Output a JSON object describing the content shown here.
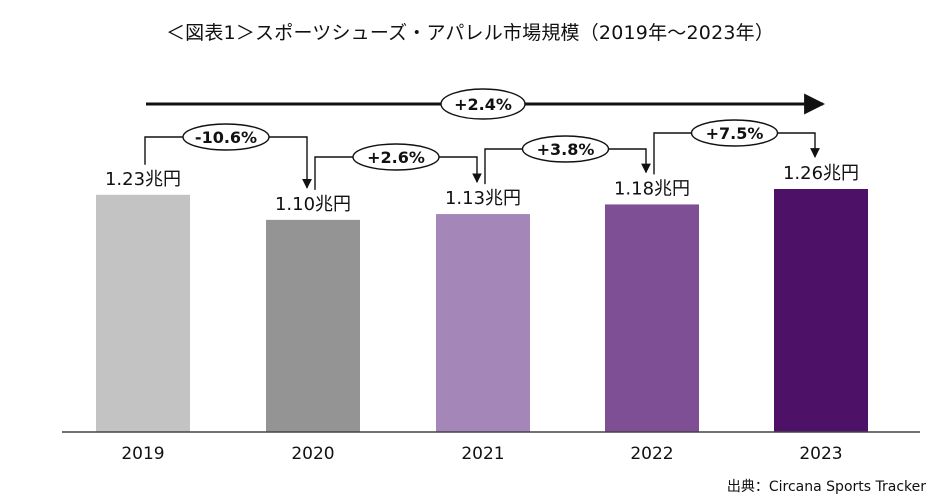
{
  "title": "＜図表1＞スポーツシューズ・アパレル市場規模（2019年～2023年）",
  "source": "出典：Circana Sports Tracker",
  "chart_data": {
    "type": "bar",
    "title": "＜図表1＞スポーツシューズ・アパレル市場規模（2019年～2023年）",
    "categories": [
      "2019",
      "2020",
      "2021",
      "2022",
      "2023"
    ],
    "values": [
      1.23,
      1.1,
      1.13,
      1.18,
      1.26
    ],
    "value_labels": [
      "1.23兆円",
      "1.10兆円",
      "1.13兆円",
      "1.18兆円",
      "1.26兆円"
    ],
    "bar_colors": [
      "#c3c3c3",
      "#949494",
      "#a586b8",
      "#7e4f95",
      "#4e1168"
    ],
    "growth_labels": [
      "-10.6%",
      "+2.6%",
      "+3.8%",
      "+7.5%"
    ],
    "overall_growth": "+2.4%",
    "ylim": [
      0,
      1.26
    ],
    "grid": false,
    "legend": "none"
  }
}
